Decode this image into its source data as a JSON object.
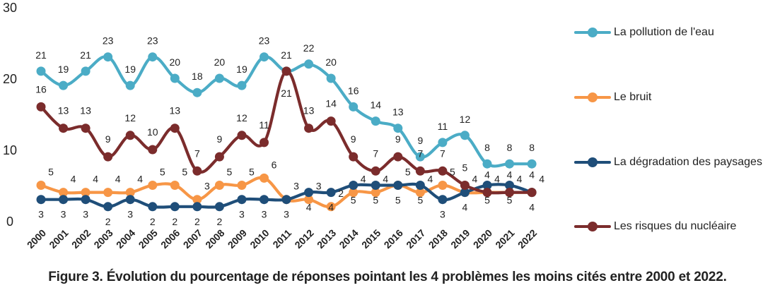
{
  "chart_data": {
    "type": "line",
    "categories": [
      "2000",
      "2001",
      "2002",
      "2003",
      "2004",
      "2005",
      "2006",
      "2007",
      "2008",
      "2009",
      "2010",
      "2011",
      "2012",
      "2013",
      "2014",
      "2015",
      "2016",
      "2017",
      "2018",
      "2019",
      "2020",
      "2021",
      "2022"
    ],
    "ylim": [
      0,
      30
    ],
    "yticks": [
      "0",
      "10",
      "20",
      "30"
    ],
    "grid": false,
    "legend_position": "right",
    "series": [
      {
        "name": "La pollution de l'eau",
        "color": "#4BACC6",
        "values": [
          21,
          19,
          21,
          23,
          19,
          23,
          20,
          18,
          20,
          19,
          23,
          21,
          22,
          20,
          16,
          14,
          13,
          9,
          11,
          12,
          8,
          8,
          8
        ],
        "labels": [
          "21",
          "19",
          "21",
          "23",
          "19",
          "23",
          "20",
          "18",
          "20",
          "19",
          "23",
          "21",
          "22",
          "20",
          "16",
          "14",
          "13",
          "9",
          "11",
          "12",
          "8",
          "8",
          "8"
        ]
      },
      {
        "name": "Le bruit",
        "color": "#F79646",
        "values": [
          5,
          4,
          4,
          4,
          4,
          5,
          5,
          3,
          5,
          5,
          6,
          3,
          3,
          2,
          4,
          4,
          5,
          4,
          5,
          4,
          4,
          4,
          4
        ],
        "labels": [
          "5",
          "4",
          "4",
          "4",
          "4",
          "5",
          "5",
          "3",
          "5",
          "5",
          "6",
          "3",
          "3",
          "2",
          "4",
          "4",
          "5",
          "4",
          "5",
          "4",
          "4",
          "4",
          "4"
        ]
      },
      {
        "name": "La dégradation des paysages",
        "color": "#1F4E79",
        "values": [
          3,
          3,
          3,
          2,
          3,
          2,
          2,
          2,
          2,
          3,
          3,
          3,
          4,
          4,
          5,
          5,
          5,
          5,
          3,
          4,
          5,
          5,
          4
        ],
        "labels": [
          "3",
          "3",
          "3",
          "2",
          "3",
          "2",
          "2",
          "2",
          "2",
          "3",
          "3",
          "3",
          "4",
          "4",
          "5",
          "5",
          "5",
          "5",
          "3",
          "4",
          "5",
          "5",
          "4"
        ]
      },
      {
        "name": "Les risques du nucléaire",
        "color": "#7B2C2C",
        "values": [
          16,
          13,
          13,
          9,
          12,
          10,
          13,
          7,
          9,
          12,
          11,
          21,
          13,
          14,
          9,
          7,
          9,
          7,
          7,
          5,
          4,
          4,
          4
        ],
        "labels": [
          "16",
          "13",
          "13",
          "9",
          "12",
          "10",
          "13",
          "7",
          "9",
          "12",
          "11",
          "21",
          "13",
          "14",
          "9",
          "7",
          "9",
          "7",
          "7",
          "5",
          "4",
          "4",
          "4"
        ]
      }
    ],
    "caption": "Figure 3. Évolution du pourcentage de réponses pointant les 4 problèmes les moins cités entre 2000 et 2022."
  }
}
